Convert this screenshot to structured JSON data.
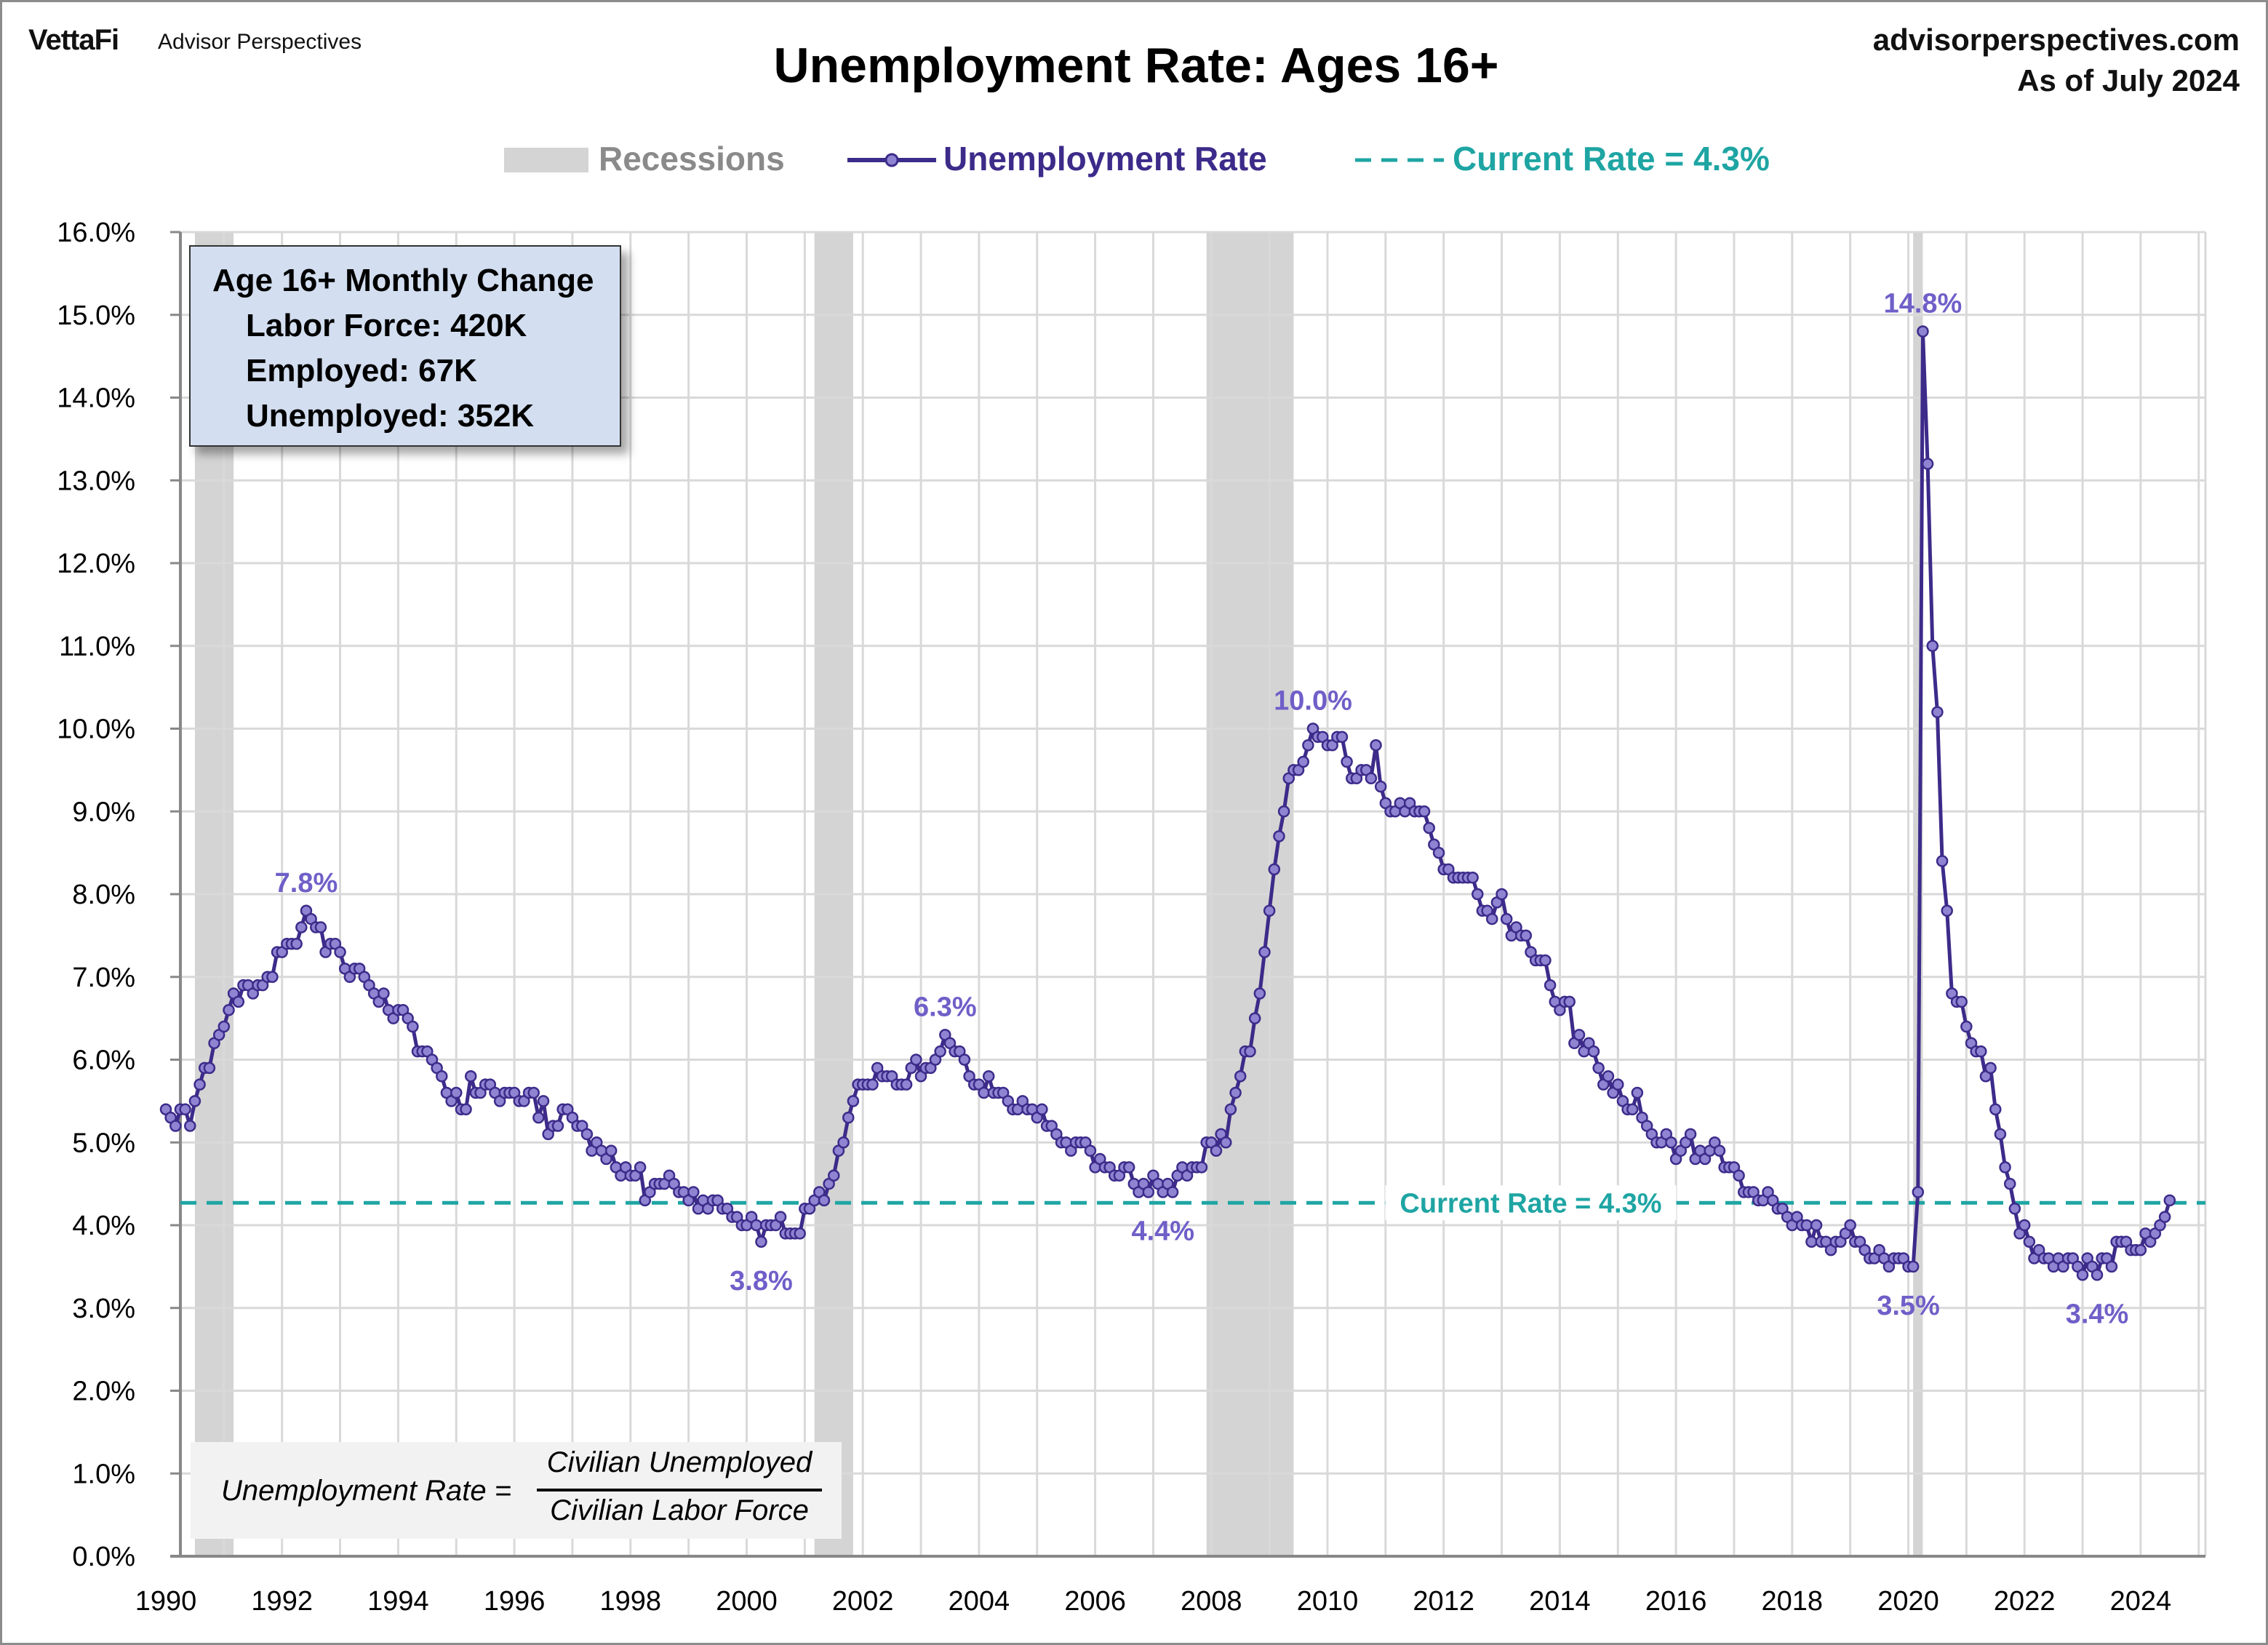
{
  "header": {
    "logo": "VettaFi",
    "logo_subtitle": "Advisor Perspectives",
    "site": "advisorperspectives.com",
    "as_of": "As of July 2024"
  },
  "info_box": {
    "title": "Age 16+ Monthly Change",
    "labor_force": "Labor Force: 420K",
    "employed": "Employed: 67K",
    "unemployed": "Unemployed: 352K"
  },
  "formula": {
    "lhs": "Unemployment Rate =",
    "numerator": "Civilian Unemployed",
    "denominator": "Civilian Labor Force"
  },
  "colors": {
    "line": "#3d2b8a",
    "marker_fill": "#8f84d2",
    "annotation": "#6f5fc8",
    "current": "#1ea5a3",
    "recession": "#d4d4d4",
    "grid": "#d9d9d9"
  },
  "chart_data": {
    "type": "line",
    "title": "Unemployment Rate: Ages 16+",
    "xlabel": "",
    "ylabel": "",
    "ylim": [
      0,
      16
    ],
    "xlim": [
      1990,
      2025
    ],
    "grid": true,
    "legend_placement": "top",
    "legend": [
      "Recessions",
      "Unemployment Rate",
      "Current Rate = 4.3%"
    ],
    "y_ticks": [
      "0.0%",
      "1.0%",
      "2.0%",
      "3.0%",
      "4.0%",
      "5.0%",
      "6.0%",
      "7.0%",
      "8.0%",
      "9.0%",
      "10.0%",
      "11.0%",
      "12.0%",
      "13.0%",
      "14.0%",
      "15.0%",
      "16.0%"
    ],
    "x_ticks": [
      "1990",
      "1992",
      "1994",
      "1996",
      "1998",
      "2000",
      "2002",
      "2004",
      "2006",
      "2008",
      "2010",
      "2012",
      "2014",
      "2016",
      "2018",
      "2020",
      "2022",
      "2024"
    ],
    "recessions": [
      [
        "1990-07",
        "1991-03"
      ],
      [
        "2001-03",
        "2001-11"
      ],
      [
        "2007-12",
        "2009-06"
      ],
      [
        "2020-02",
        "2020-04"
      ]
    ],
    "current_rate": 4.3,
    "current_label": "Current Rate = 4.3%",
    "series": [
      {
        "name": "Unemployment Rate",
        "start": "1990-01",
        "frequency": "monthly",
        "values": [
          5.4,
          5.3,
          5.2,
          5.4,
          5.4,
          5.2,
          5.5,
          5.7,
          5.9,
          5.9,
          6.2,
          6.3,
          6.4,
          6.6,
          6.8,
          6.7,
          6.9,
          6.9,
          6.8,
          6.9,
          6.9,
          7.0,
          7.0,
          7.3,
          7.3,
          7.4,
          7.4,
          7.4,
          7.6,
          7.8,
          7.7,
          7.6,
          7.6,
          7.3,
          7.4,
          7.4,
          7.3,
          7.1,
          7.0,
          7.1,
          7.1,
          7.0,
          6.9,
          6.8,
          6.7,
          6.8,
          6.6,
          6.5,
          6.6,
          6.6,
          6.5,
          6.4,
          6.1,
          6.1,
          6.1,
          6.0,
          5.9,
          5.8,
          5.6,
          5.5,
          5.6,
          5.4,
          5.4,
          5.8,
          5.6,
          5.6,
          5.7,
          5.7,
          5.6,
          5.5,
          5.6,
          5.6,
          5.6,
          5.5,
          5.5,
          5.6,
          5.6,
          5.3,
          5.5,
          5.1,
          5.2,
          5.2,
          5.4,
          5.4,
          5.3,
          5.2,
          5.2,
          5.1,
          4.9,
          5.0,
          4.9,
          4.8,
          4.9,
          4.7,
          4.6,
          4.7,
          4.6,
          4.6,
          4.7,
          4.3,
          4.4,
          4.5,
          4.5,
          4.5,
          4.6,
          4.5,
          4.4,
          4.4,
          4.3,
          4.4,
          4.2,
          4.3,
          4.2,
          4.3,
          4.3,
          4.2,
          4.2,
          4.1,
          4.1,
          4.0,
          4.0,
          4.1,
          4.0,
          3.8,
          4.0,
          4.0,
          4.0,
          4.1,
          3.9,
          3.9,
          3.9,
          3.9,
          4.2,
          4.2,
          4.3,
          4.4,
          4.3,
          4.5,
          4.6,
          4.9,
          5.0,
          5.3,
          5.5,
          5.7,
          5.7,
          5.7,
          5.7,
          5.9,
          5.8,
          5.8,
          5.8,
          5.7,
          5.7,
          5.7,
          5.9,
          6.0,
          5.8,
          5.9,
          5.9,
          6.0,
          6.1,
          6.3,
          6.2,
          6.1,
          6.1,
          6.0,
          5.8,
          5.7,
          5.7,
          5.6,
          5.8,
          5.6,
          5.6,
          5.6,
          5.5,
          5.4,
          5.4,
          5.5,
          5.4,
          5.4,
          5.3,
          5.4,
          5.2,
          5.2,
          5.1,
          5.0,
          5.0,
          4.9,
          5.0,
          5.0,
          5.0,
          4.9,
          4.7,
          4.8,
          4.7,
          4.7,
          4.6,
          4.6,
          4.7,
          4.7,
          4.5,
          4.4,
          4.5,
          4.4,
          4.6,
          4.5,
          4.4,
          4.5,
          4.4,
          4.6,
          4.7,
          4.6,
          4.7,
          4.7,
          4.7,
          5.0,
          5.0,
          4.9,
          5.1,
          5.0,
          5.4,
          5.6,
          5.8,
          6.1,
          6.1,
          6.5,
          6.8,
          7.3,
          7.8,
          8.3,
          8.7,
          9.0,
          9.4,
          9.5,
          9.5,
          9.6,
          9.8,
          10.0,
          9.9,
          9.9,
          9.8,
          9.8,
          9.9,
          9.9,
          9.6,
          9.4,
          9.4,
          9.5,
          9.5,
          9.4,
          9.8,
          9.3,
          9.1,
          9.0,
          9.0,
          9.1,
          9.0,
          9.1,
          9.0,
          9.0,
          9.0,
          8.8,
          8.6,
          8.5,
          8.3,
          8.3,
          8.2,
          8.2,
          8.2,
          8.2,
          8.2,
          8.0,
          7.8,
          7.8,
          7.7,
          7.9,
          8.0,
          7.7,
          7.5,
          7.6,
          7.5,
          7.5,
          7.3,
          7.2,
          7.2,
          7.2,
          6.9,
          6.7,
          6.6,
          6.7,
          6.7,
          6.2,
          6.3,
          6.1,
          6.2,
          6.1,
          5.9,
          5.7,
          5.8,
          5.6,
          5.7,
          5.5,
          5.4,
          5.4,
          5.6,
          5.3,
          5.2,
          5.1,
          5.0,
          5.0,
          5.1,
          5.0,
          4.8,
          4.9,
          5.0,
          5.1,
          4.8,
          4.9,
          4.8,
          4.9,
          5.0,
          4.9,
          4.7,
          4.7,
          4.7,
          4.6,
          4.4,
          4.4,
          4.4,
          4.3,
          4.3,
          4.4,
          4.3,
          4.2,
          4.2,
          4.1,
          4.0,
          4.1,
          4.0,
          4.0,
          3.8,
          4.0,
          3.8,
          3.8,
          3.7,
          3.8,
          3.8,
          3.9,
          4.0,
          3.8,
          3.8,
          3.7,
          3.6,
          3.6,
          3.7,
          3.6,
          3.5,
          3.6,
          3.6,
          3.6,
          3.5,
          3.5,
          4.4,
          14.8,
          13.2,
          11.0,
          10.2,
          8.4,
          7.8,
          6.8,
          6.7,
          6.7,
          6.4,
          6.2,
          6.1,
          6.1,
          5.8,
          5.9,
          5.4,
          5.1,
          4.7,
          4.5,
          4.2,
          3.9,
          4.0,
          3.8,
          3.6,
          3.7,
          3.6,
          3.6,
          3.5,
          3.6,
          3.5,
          3.6,
          3.6,
          3.5,
          3.4,
          3.6,
          3.5,
          3.4,
          3.6,
          3.6,
          3.5,
          3.8,
          3.8,
          3.8,
          3.7,
          3.7,
          3.7,
          3.9,
          3.8,
          3.9,
          4.0,
          4.1,
          4.3
        ]
      }
    ],
    "annotations": [
      {
        "text": "7.8%",
        "date": "1992-06",
        "value": 7.8,
        "position": "above"
      },
      {
        "text": "3.8%",
        "date": "2000-04",
        "value": 3.8,
        "position": "below"
      },
      {
        "text": "6.3%",
        "date": "2003-06",
        "value": 6.3,
        "position": "above"
      },
      {
        "text": "4.4%",
        "date": "2007-03",
        "value": 4.4,
        "position": "below"
      },
      {
        "text": "10.0%",
        "date": "2009-10",
        "value": 10.0,
        "position": "above"
      },
      {
        "text": "14.8%",
        "date": "2020-04",
        "value": 14.8,
        "position": "above"
      },
      {
        "text": "3.5%",
        "date": "2020-01",
        "value": 3.5,
        "position": "below"
      },
      {
        "text": "3.4%",
        "date": "2023-04",
        "value": 3.4,
        "position": "below"
      }
    ]
  }
}
